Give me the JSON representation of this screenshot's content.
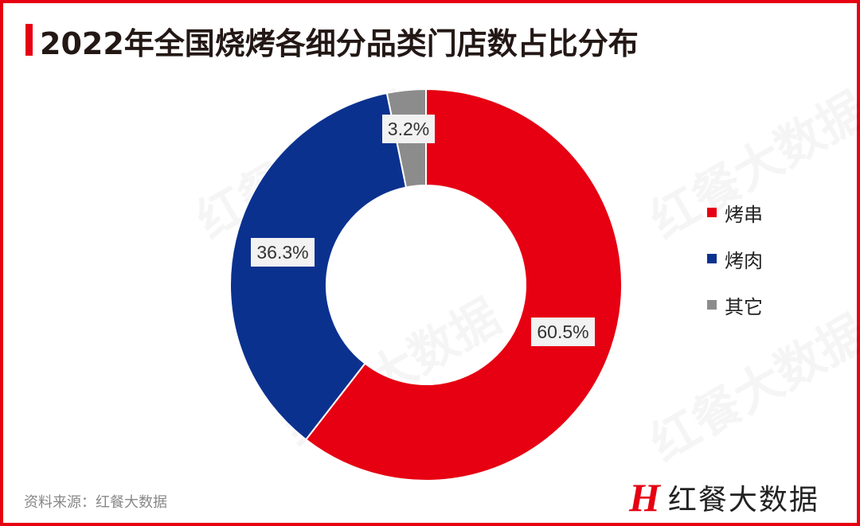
{
  "title": "2022年全国烧烤各细分品类门店数占比分布",
  "source": "资料来源：红餐大数据",
  "brand": {
    "mark": "H",
    "name": "红餐大数据"
  },
  "watermark": "红餐大数据",
  "chart_data": {
    "type": "pie",
    "donut": true,
    "title": "2022年全国烧烤各细分品类门店数占比分布",
    "categories": [
      "烤串",
      "烤肉",
      "其它"
    ],
    "values": [
      60.5,
      36.3,
      3.2
    ],
    "labels": [
      "60.5%",
      "36.3%",
      "3.2%"
    ],
    "colors": [
      "#e60012",
      "#0b318f",
      "#8c8c8c"
    ],
    "legend": "right"
  }
}
